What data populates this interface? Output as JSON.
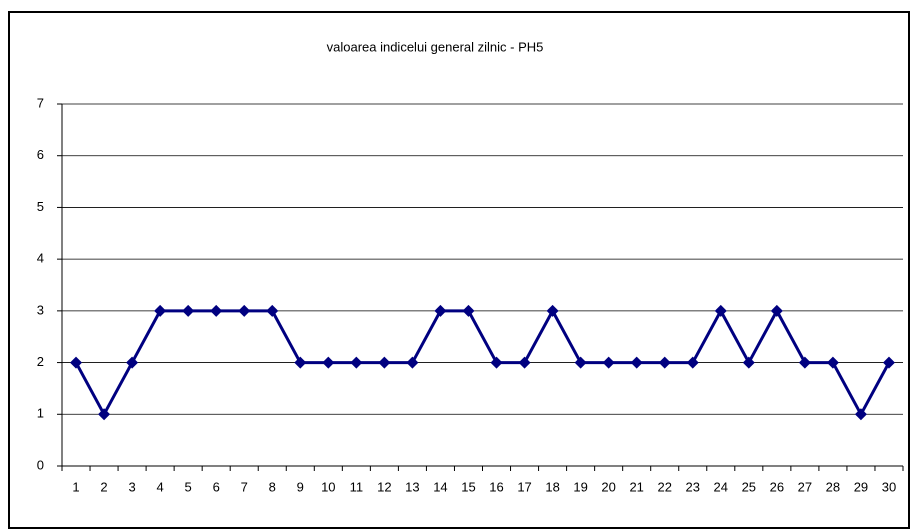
{
  "chart_data": {
    "type": "line",
    "title": "valoarea indicelui general zilnic - PH5",
    "categories": [
      "1",
      "2",
      "3",
      "4",
      "5",
      "6",
      "7",
      "8",
      "9",
      "10",
      "11",
      "12",
      "13",
      "14",
      "15",
      "16",
      "17",
      "18",
      "19",
      "20",
      "21",
      "22",
      "23",
      "24",
      "25",
      "26",
      "27",
      "28",
      "29",
      "30"
    ],
    "series": [
      {
        "color": "#000080",
        "values": [
          2,
          1,
          2,
          3,
          3,
          3,
          3,
          3,
          2,
          2,
          2,
          2,
          2,
          3,
          3,
          2,
          2,
          3,
          2,
          2,
          2,
          2,
          2,
          3,
          2,
          3,
          2,
          2,
          1,
          2
        ]
      }
    ],
    "ylim": [
      0,
      7
    ],
    "yticks": [
      0,
      1,
      2,
      3,
      4,
      5,
      6,
      7
    ],
    "grid": true
  }
}
